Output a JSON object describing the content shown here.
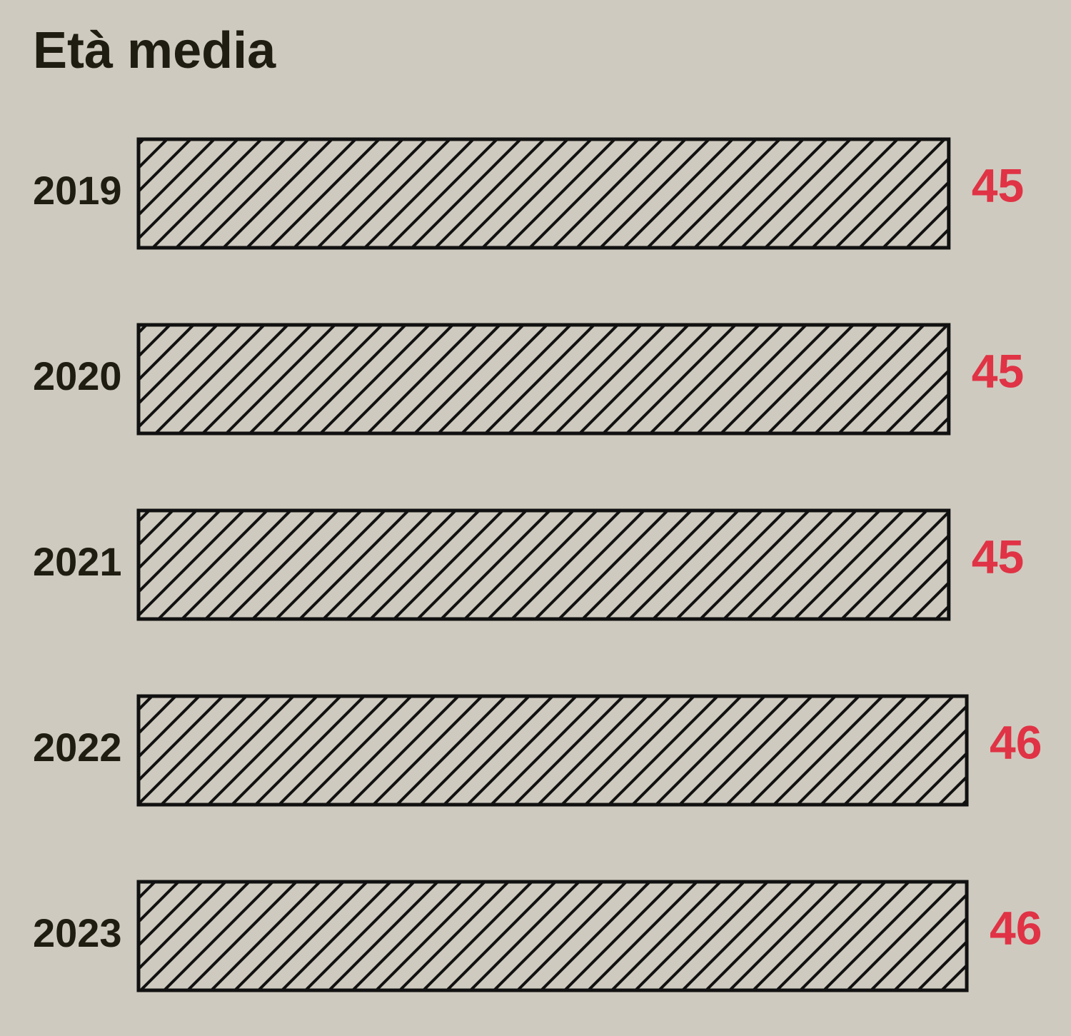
{
  "chart_data": {
    "type": "bar",
    "title": "Età media",
    "categories": [
      "2019",
      "2020",
      "2021",
      "2022",
      "2023"
    ],
    "values": [
      45,
      45,
      45,
      46,
      46
    ],
    "color": "#cfcabf",
    "label_color": "#e03345"
  }
}
